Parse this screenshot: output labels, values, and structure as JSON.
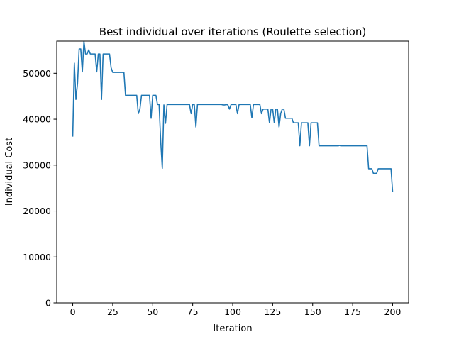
{
  "chart_data": {
    "type": "line",
    "title": "Best individual over iterations (Roulette selection)",
    "xlabel": "Iteration",
    "ylabel": "Individual Cost",
    "xlim": [
      -10,
      210
    ],
    "ylim": [
      0,
      57000
    ],
    "xticks": [
      0,
      25,
      50,
      75,
      100,
      125,
      150,
      175,
      200
    ],
    "yticks": [
      0,
      10000,
      20000,
      30000,
      40000,
      50000
    ],
    "grid": false,
    "legend": "none",
    "series": [
      {
        "color": "#1f77b4",
        "points": [
          [
            0,
            36200
          ],
          [
            1,
            52200
          ],
          [
            2,
            44300
          ],
          [
            3,
            47800
          ],
          [
            4,
            55300
          ],
          [
            5,
            55300
          ],
          [
            6,
            50300
          ],
          [
            7,
            57000
          ],
          [
            8,
            54200
          ],
          [
            9,
            54200
          ],
          [
            10,
            55100
          ],
          [
            11,
            54200
          ],
          [
            12,
            54200
          ],
          [
            13,
            54200
          ],
          [
            14,
            54200
          ],
          [
            15,
            50300
          ],
          [
            16,
            54200
          ],
          [
            17,
            54200
          ],
          [
            18,
            44300
          ],
          [
            19,
            54200
          ],
          [
            20,
            54200
          ],
          [
            21,
            54200
          ],
          [
            22,
            54200
          ],
          [
            23,
            54200
          ],
          [
            24,
            51200
          ],
          [
            25,
            50200
          ],
          [
            26,
            50200
          ],
          [
            27,
            50200
          ],
          [
            28,
            50200
          ],
          [
            29,
            50200
          ],
          [
            30,
            50200
          ],
          [
            31,
            50200
          ],
          [
            32,
            50200
          ],
          [
            33,
            45200
          ],
          [
            34,
            45200
          ],
          [
            35,
            45200
          ],
          [
            36,
            45200
          ],
          [
            37,
            45200
          ],
          [
            38,
            45200
          ],
          [
            39,
            45200
          ],
          [
            40,
            45200
          ],
          [
            41,
            41200
          ],
          [
            42,
            42200
          ],
          [
            43,
            45200
          ],
          [
            44,
            45200
          ],
          [
            45,
            45200
          ],
          [
            46,
            45200
          ],
          [
            47,
            45200
          ],
          [
            48,
            45200
          ],
          [
            49,
            40200
          ],
          [
            50,
            45200
          ],
          [
            51,
            45200
          ],
          [
            52,
            45200
          ],
          [
            53,
            43200
          ],
          [
            54,
            43200
          ],
          [
            55,
            35200
          ],
          [
            56,
            29300
          ],
          [
            57,
            43100
          ],
          [
            58,
            39100
          ],
          [
            59,
            43200
          ],
          [
            60,
            43200
          ],
          [
            61,
            43200
          ],
          [
            62,
            43200
          ],
          [
            63,
            43200
          ],
          [
            64,
            43200
          ],
          [
            65,
            43200
          ],
          [
            66,
            43200
          ],
          [
            67,
            43200
          ],
          [
            68,
            43200
          ],
          [
            69,
            43200
          ],
          [
            70,
            43200
          ],
          [
            71,
            43200
          ],
          [
            72,
            43200
          ],
          [
            73,
            43200
          ],
          [
            74,
            41200
          ],
          [
            75,
            43200
          ],
          [
            76,
            43200
          ],
          [
            77,
            38300
          ],
          [
            78,
            43200
          ],
          [
            79,
            43200
          ],
          [
            80,
            43200
          ],
          [
            81,
            43200
          ],
          [
            82,
            43200
          ],
          [
            83,
            43200
          ],
          [
            84,
            43200
          ],
          [
            85,
            43200
          ],
          [
            86,
            43200
          ],
          [
            87,
            43200
          ],
          [
            88,
            43200
          ],
          [
            89,
            43200
          ],
          [
            90,
            43200
          ],
          [
            91,
            43200
          ],
          [
            92,
            43200
          ],
          [
            93,
            43200
          ],
          [
            94,
            43100
          ],
          [
            95,
            43100
          ],
          [
            96,
            43200
          ],
          [
            97,
            43100
          ],
          [
            98,
            42200
          ],
          [
            99,
            43200
          ],
          [
            100,
            43200
          ],
          [
            101,
            43200
          ],
          [
            102,
            43200
          ],
          [
            103,
            41200
          ],
          [
            104,
            43200
          ],
          [
            105,
            43200
          ],
          [
            106,
            43200
          ],
          [
            107,
            43200
          ],
          [
            108,
            43200
          ],
          [
            109,
            43200
          ],
          [
            110,
            43200
          ],
          [
            111,
            43200
          ],
          [
            112,
            40300
          ],
          [
            113,
            43200
          ],
          [
            114,
            43200
          ],
          [
            115,
            43200
          ],
          [
            116,
            43200
          ],
          [
            117,
            43200
          ],
          [
            118,
            41200
          ],
          [
            119,
            42200
          ],
          [
            120,
            42200
          ],
          [
            121,
            42200
          ],
          [
            122,
            42200
          ],
          [
            123,
            39200
          ],
          [
            124,
            42200
          ],
          [
            125,
            42200
          ],
          [
            126,
            39200
          ],
          [
            127,
            42200
          ],
          [
            128,
            42200
          ],
          [
            129,
            38300
          ],
          [
            130,
            41200
          ],
          [
            131,
            42200
          ],
          [
            132,
            42200
          ],
          [
            133,
            40200
          ],
          [
            134,
            40200
          ],
          [
            135,
            40200
          ],
          [
            136,
            40200
          ],
          [
            137,
            40200
          ],
          [
            138,
            39200
          ],
          [
            139,
            39200
          ],
          [
            140,
            39200
          ],
          [
            141,
            39200
          ],
          [
            142,
            34200
          ],
          [
            143,
            39200
          ],
          [
            144,
            39200
          ],
          [
            145,
            39200
          ],
          [
            146,
            39200
          ],
          [
            147,
            39200
          ],
          [
            148,
            34200
          ],
          [
            149,
            39200
          ],
          [
            150,
            39200
          ],
          [
            151,
            39200
          ],
          [
            152,
            39200
          ],
          [
            153,
            39200
          ],
          [
            154,
            34200
          ],
          [
            155,
            34200
          ],
          [
            156,
            34200
          ],
          [
            157,
            34200
          ],
          [
            158,
            34200
          ],
          [
            159,
            34200
          ],
          [
            160,
            34200
          ],
          [
            166,
            34200
          ],
          [
            167,
            34300
          ],
          [
            168,
            34200
          ],
          [
            175,
            34200
          ],
          [
            180,
            34200
          ],
          [
            184,
            34200
          ],
          [
            185,
            29200
          ],
          [
            186,
            29200
          ],
          [
            187,
            29200
          ],
          [
            188,
            28200
          ],
          [
            189,
            28200
          ],
          [
            190,
            28200
          ],
          [
            191,
            29200
          ],
          [
            192,
            29200
          ],
          [
            193,
            29200
          ],
          [
            194,
            29200
          ],
          [
            195,
            29200
          ],
          [
            196,
            29200
          ],
          [
            197,
            29200
          ],
          [
            198,
            29200
          ],
          [
            199,
            29200
          ],
          [
            200,
            24200
          ]
        ]
      }
    ]
  }
}
